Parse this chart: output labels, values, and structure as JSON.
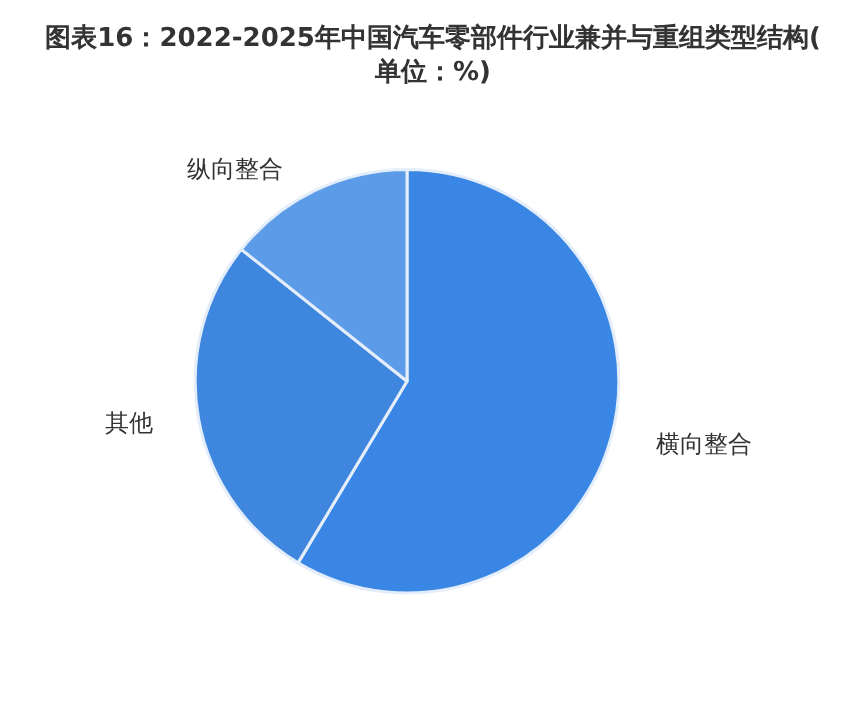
{
  "chart_data": {
    "type": "pie",
    "title": "图表16：2022-2025年中国汽车零部件行业兼并与重组类型结构(单位：%)",
    "categories": [
      "横向整合",
      "其他",
      "纵向整合"
    ],
    "values": [
      58.6,
      27.1,
      14.3
    ],
    "colors": [
      "#3a86e4",
      "#3f86de",
      "#5b9be8"
    ],
    "legend": false
  }
}
